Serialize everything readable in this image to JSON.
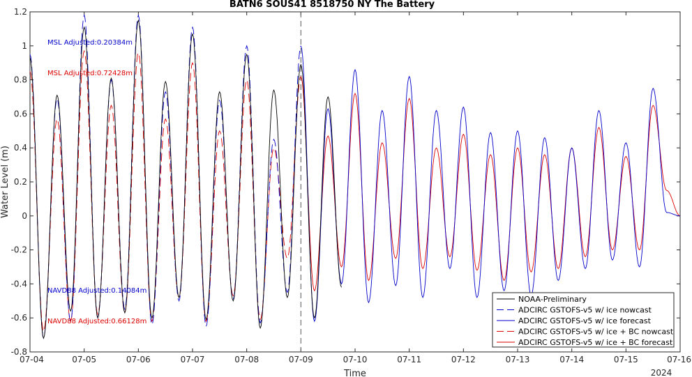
{
  "chart_data": {
    "type": "line",
    "title": "BATN6 SOUS41 8518750 NY The Battery",
    "xlabel": "Time",
    "ylabel": "Water Level (m)",
    "x_tick_labels": [
      "07-04",
      "07-05",
      "07-06",
      "07-07",
      "07-08",
      "07-09",
      "07-10",
      "07-11",
      "07-12",
      "07-13",
      "07-14",
      "07-15",
      "07-16"
    ],
    "year_label": "2024",
    "xlim_days": [
      0,
      12
    ],
    "ylim": [
      -0.8,
      1.2
    ],
    "y_ticks": [
      -0.8,
      -0.6,
      -0.4,
      -0.2,
      0,
      0.2,
      0.4,
      0.6,
      0.8,
      1,
      1.2
    ],
    "y_tick_labels": [
      "-0.8",
      "-0.6",
      "-0.4",
      "-0.2",
      "0",
      "0.2",
      "0.4",
      "0.6",
      "0.8",
      "1",
      "1.2"
    ],
    "nowcast_forecast_boundary_day": 5,
    "grid": false,
    "legend_position": "bottom-right",
    "annotations": [
      {
        "text": "MSL Adjusted:0.20384m",
        "color": "#0000cc",
        "y": 1.02
      },
      {
        "text": "MSL Adjusted:0.72428m",
        "color": "#dd0000",
        "y": 0.84
      },
      {
        "text": "NAVD88 Adjusted:0.14084m",
        "color": "#0000cc",
        "y": -0.44
      },
      {
        "text": "NAVD88 Adjusted:0.66128m",
        "color": "#dd0000",
        "y": -0.62
      }
    ],
    "series": [
      {
        "name": "NOAA-Preliminary",
        "color": "#000000",
        "dash": "solid",
        "t": [
          0.0,
          0.25,
          0.5,
          0.75,
          1.0,
          1.25,
          1.5,
          1.75,
          2.0,
          2.25,
          2.5,
          2.75,
          3.0,
          3.25,
          3.5,
          3.75,
          4.0,
          4.25,
          4.5,
          4.75,
          5.0,
          5.25,
          5.5,
          5.75
        ],
        "v": [
          0.93,
          -0.72,
          0.71,
          -0.56,
          1.11,
          -0.6,
          0.81,
          -0.57,
          1.15,
          -0.6,
          0.79,
          -0.48,
          1.07,
          -0.61,
          0.73,
          -0.5,
          0.95,
          -0.66,
          0.74,
          -0.48,
          0.89,
          -0.6,
          0.7,
          -0.42
        ]
      },
      {
        "name": "ADCIRC GSTOFS-v5 w/ ice nowcast",
        "color": "#0000cc",
        "dash": "12,6",
        "t": [
          0.0,
          0.25,
          0.5,
          0.75,
          1.0,
          1.25,
          1.5,
          1.75,
          2.0,
          2.25,
          2.5,
          2.75,
          3.0,
          3.25,
          3.5,
          3.75,
          4.0,
          4.25,
          4.5,
          4.75,
          5.0
        ],
        "v": [
          0.95,
          -0.72,
          0.69,
          -0.62,
          1.18,
          -0.6,
          0.8,
          -0.55,
          1.18,
          -0.64,
          0.73,
          -0.5,
          1.11,
          -0.65,
          0.68,
          -0.49,
          1.0,
          -0.63,
          0.45,
          -0.45,
          1.0
        ]
      },
      {
        "name": "ADCIRC GSTOFS-v5 w/ ice forecast",
        "color": "#0000cc",
        "dash": "solid",
        "t": [
          5.0,
          5.25,
          5.5,
          5.75,
          6.0,
          6.25,
          6.5,
          6.75,
          7.0,
          7.25,
          7.5,
          7.75,
          8.0,
          8.25,
          8.5,
          8.75,
          9.0,
          9.25,
          9.5,
          9.75,
          10.0,
          10.25,
          10.5,
          10.75,
          11.0,
          11.25,
          11.5,
          11.75,
          12.0
        ],
        "v": [
          1.0,
          -0.62,
          0.63,
          -0.4,
          0.86,
          -0.51,
          0.62,
          -0.41,
          0.82,
          -0.48,
          0.62,
          -0.31,
          0.64,
          -0.48,
          0.49,
          -0.44,
          0.5,
          -0.47,
          0.46,
          -0.38,
          0.4,
          -0.31,
          0.62,
          -0.26,
          0.43,
          -0.3,
          0.75,
          0.02,
          0.0
        ]
      },
      {
        "name": "ADCIRC GSTOFS-v5 w/ ice + BC nowcast",
        "color": "#dd0000",
        "dash": "12,6",
        "t": [
          0.0,
          0.25,
          0.5,
          0.75,
          1.0,
          1.25,
          1.5,
          1.75,
          2.0,
          2.25,
          2.5,
          2.75,
          3.0,
          3.25,
          3.5,
          3.75,
          4.0,
          4.25,
          4.5,
          4.75,
          5.0
        ],
        "v": [
          0.85,
          -0.68,
          0.57,
          -0.62,
          0.97,
          -0.58,
          0.65,
          -0.57,
          0.96,
          -0.62,
          0.57,
          -0.48,
          0.9,
          -0.62,
          0.5,
          -0.47,
          0.8,
          -0.61,
          0.4,
          -0.25,
          0.82
        ]
      },
      {
        "name": "ADCIRC GSTOFS-v5 w/ ice + BC forecast",
        "color": "#dd0000",
        "dash": "solid",
        "t": [
          5.0,
          5.25,
          5.5,
          5.75,
          6.0,
          6.25,
          6.5,
          6.75,
          7.0,
          7.25,
          7.5,
          7.75,
          8.0,
          8.25,
          8.5,
          8.75,
          9.0,
          9.25,
          9.5,
          9.75,
          10.0,
          10.25,
          10.5,
          10.75,
          11.0,
          11.25,
          11.5,
          11.75,
          12.0
        ],
        "v": [
          0.82,
          -0.44,
          0.47,
          -0.3,
          0.72,
          -0.38,
          0.43,
          -0.25,
          0.69,
          -0.31,
          0.4,
          -0.24,
          0.48,
          -0.32,
          0.36,
          -0.38,
          0.4,
          -0.33,
          0.36,
          -0.31,
          0.4,
          -0.24,
          0.52,
          -0.2,
          0.35,
          -0.2,
          0.65,
          0.15,
          0.0
        ]
      }
    ]
  }
}
